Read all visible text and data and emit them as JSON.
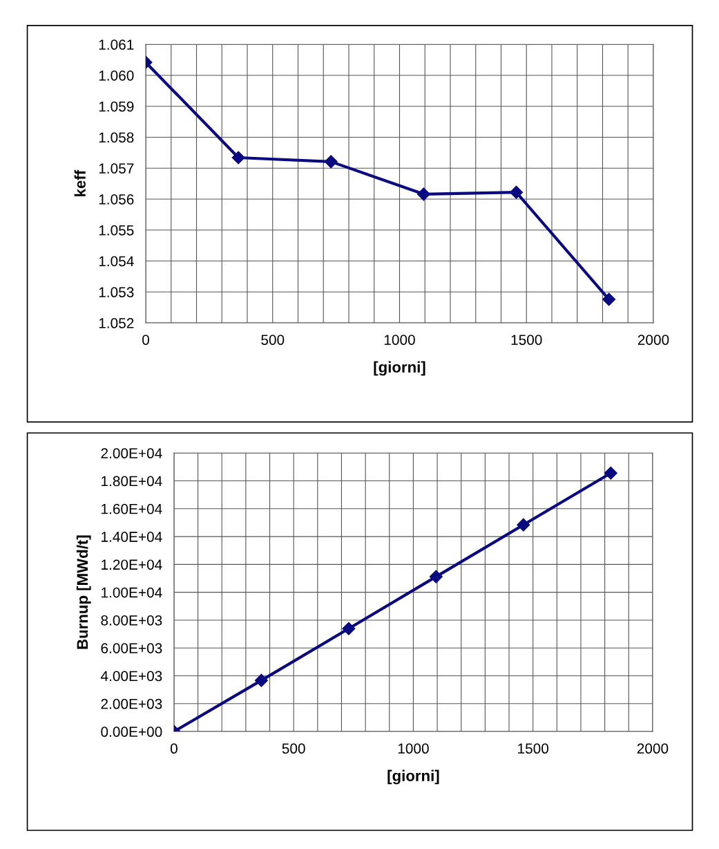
{
  "chart_data": [
    {
      "type": "line",
      "xlabel": "[giorni]",
      "ylabel": "keff",
      "x": [
        0,
        365,
        730,
        1095,
        1460,
        1825
      ],
      "series": [
        {
          "color": "#0a0a80",
          "values": [
            1.06042,
            1.05734,
            1.05721,
            1.05616,
            1.05622,
            1.05276
          ]
        }
      ],
      "xlim": [
        0,
        2000
      ],
      "ylim": [
        1.052,
        1.061
      ],
      "xticks": [
        0,
        {
          "value": 100,
          "label": null
        },
        {
          "value": 200,
          "label": null
        },
        {
          "value": 300,
          "label": null
        },
        {
          "value": 400,
          "label": null
        },
        500,
        {
          "value": 600,
          "label": null
        },
        {
          "value": 700,
          "label": null
        },
        {
          "value": 800,
          "label": null
        },
        {
          "value": 900,
          "label": null
        },
        1000,
        {
          "value": 1100,
          "label": null
        },
        {
          "value": 1200,
          "label": null
        },
        {
          "value": 1300,
          "label": null
        },
        {
          "value": 1400,
          "label": null
        },
        1500,
        {
          "value": 1600,
          "label": null
        },
        {
          "value": 1700,
          "label": null
        },
        {
          "value": 1800,
          "label": null
        },
        {
          "value": 1900,
          "label": null
        },
        2000
      ],
      "yticks": [
        {
          "value": 1.052,
          "label": "1.052"
        },
        {
          "value": 1.053,
          "label": "1.053"
        },
        {
          "value": 1.054,
          "label": "1.054"
        },
        {
          "value": 1.055,
          "label": "1.055"
        },
        {
          "value": 1.056,
          "label": "1.056"
        },
        {
          "value": 1.057,
          "label": "1.057"
        },
        {
          "value": 1.058,
          "label": "1.058"
        },
        {
          "value": 1.059,
          "label": "1.059"
        },
        {
          "value": 1.06,
          "label": "1.060"
        },
        {
          "value": 1.061,
          "label": "1.061"
        }
      ],
      "grid": true,
      "legend": false,
      "marker": "diamond",
      "line_style": "solid"
    },
    {
      "type": "line",
      "xlabel": "[giorni]",
      "ylabel": "Burnup [MWd/t]",
      "x": [
        0,
        365,
        730,
        1095,
        1460,
        1825
      ],
      "series": [
        {
          "color": "#0a0a80",
          "values": [
            0,
            3670,
            7390,
            11120,
            14840,
            18560
          ]
        }
      ],
      "xlim": [
        0,
        2000
      ],
      "ylim": [
        0,
        20000
      ],
      "xticks": [
        0,
        {
          "value": 100,
          "label": null
        },
        {
          "value": 200,
          "label": null
        },
        {
          "value": 300,
          "label": null
        },
        {
          "value": 400,
          "label": null
        },
        500,
        {
          "value": 600,
          "label": null
        },
        {
          "value": 700,
          "label": null
        },
        {
          "value": 800,
          "label": null
        },
        {
          "value": 900,
          "label": null
        },
        1000,
        {
          "value": 1100,
          "label": null
        },
        {
          "value": 1200,
          "label": null
        },
        {
          "value": 1300,
          "label": null
        },
        {
          "value": 1400,
          "label": null
        },
        1500,
        {
          "value": 1600,
          "label": null
        },
        {
          "value": 1700,
          "label": null
        },
        {
          "value": 1800,
          "label": null
        },
        {
          "value": 1900,
          "label": null
        },
        2000
      ],
      "yticks": [
        {
          "value": 0,
          "label": "0.00E+00"
        },
        {
          "value": 2000,
          "label": "2.00E+03"
        },
        {
          "value": 4000,
          "label": "4.00E+03"
        },
        {
          "value": 6000,
          "label": "6.00E+03"
        },
        {
          "value": 8000,
          "label": "8.00E+03"
        },
        {
          "value": 10000,
          "label": "1.00E+04"
        },
        {
          "value": 12000,
          "label": "1.20E+04"
        },
        {
          "value": 14000,
          "label": "1.40E+04"
        },
        {
          "value": 16000,
          "label": "1.60E+04"
        },
        {
          "value": 18000,
          "label": "1.80E+04"
        },
        {
          "value": 20000,
          "label": "2.00E+04"
        }
      ],
      "grid": true,
      "legend": false,
      "marker": "diamond",
      "line_style": "solid"
    }
  ]
}
